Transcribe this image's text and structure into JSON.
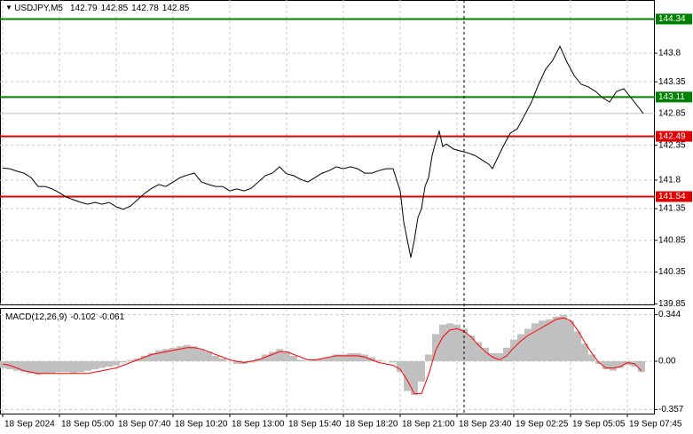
{
  "chart_data": [
    {
      "type": "line",
      "title": "USDJPY,M5",
      "ohlc": [
        142.79,
        142.85,
        142.78,
        142.85
      ],
      "color": "#000000",
      "x": [
        0,
        4,
        8,
        12,
        16,
        20,
        24,
        28,
        32,
        36,
        40,
        44,
        48,
        52,
        56,
        60,
        64,
        68,
        72,
        76,
        80,
        84,
        88,
        92,
        96,
        100,
        104,
        108,
        112,
        116,
        120,
        124,
        128,
        132,
        136,
        140,
        144,
        148,
        152,
        156,
        160,
        164,
        168,
        172,
        176,
        180,
        184,
        188,
        192,
        196,
        200,
        204,
        208,
        212,
        216,
        220,
        224,
        226,
        228,
        230,
        232,
        234,
        236,
        238,
        240,
        242,
        244,
        246,
        248,
        250,
        254,
        258,
        262,
        266,
        270,
        274,
        276,
        278,
        282,
        286,
        290,
        294,
        298,
        302,
        306,
        310,
        314,
        318,
        322,
        326,
        330,
        334,
        338,
        342,
        346,
        350,
        354,
        358,
        361
      ],
      "values": [
        141.99,
        141.98,
        141.94,
        141.91,
        141.84,
        141.7,
        141.7,
        141.66,
        141.6,
        141.53,
        141.49,
        141.45,
        141.42,
        141.45,
        141.42,
        141.45,
        141.38,
        141.34,
        141.39,
        141.49,
        141.59,
        141.67,
        141.73,
        141.7,
        141.77,
        141.84,
        141.88,
        141.91,
        141.77,
        141.73,
        141.7,
        141.7,
        141.63,
        141.66,
        141.63,
        141.67,
        141.77,
        141.87,
        141.91,
        142.01,
        141.9,
        141.87,
        141.81,
        141.77,
        141.84,
        141.91,
        141.95,
        142.01,
        141.98,
        142.01,
        141.98,
        141.91,
        141.91,
        141.95,
        141.98,
        141.98,
        141.63,
        141.14,
        140.86,
        140.58,
        140.86,
        141.21,
        141.35,
        141.7,
        141.84,
        142.19,
        142.4,
        142.57,
        142.33,
        142.37,
        142.29,
        142.26,
        142.23,
        142.19,
        142.12,
        142.05,
        141.98,
        142.1,
        142.33,
        142.54,
        142.61,
        142.82,
        143.03,
        143.31,
        143.55,
        143.69,
        143.91,
        143.66,
        143.45,
        143.31,
        143.27,
        143.2,
        143.1,
        143.03,
        143.2,
        143.24,
        143.1,
        142.96,
        142.85
      ],
      "xlim": [
        -1.5,
        367.5
      ],
      "ylim": [
        139.84,
        144.64
      ],
      "yticks": [
        139.85,
        140.35,
        140.85,
        141.35,
        141.8,
        142.35,
        143.35,
        143.8
      ],
      "levels": [
        {
          "value": 144.34,
          "color": "#008000"
        },
        {
          "value": 143.11,
          "color": "#008000"
        },
        {
          "value": 142.49,
          "color": "#e00000"
        },
        {
          "value": 141.54,
          "color": "#e00000"
        }
      ],
      "current_price": 142.85,
      "grid": true
    },
    {
      "type": "macd",
      "title": "MACD(12,26,9)",
      "readout": [
        -0.102,
        -0.061
      ],
      "x": [
        0,
        4,
        8,
        12,
        16,
        20,
        24,
        28,
        32,
        36,
        40,
        44,
        48,
        52,
        56,
        60,
        64,
        68,
        72,
        76,
        80,
        84,
        88,
        92,
        96,
        100,
        104,
        108,
        112,
        116,
        120,
        124,
        128,
        132,
        136,
        140,
        144,
        148,
        152,
        156,
        160,
        164,
        168,
        172,
        176,
        180,
        184,
        188,
        192,
        196,
        200,
        204,
        208,
        212,
        216,
        220,
        224,
        228,
        232,
        236,
        240,
        244,
        248,
        252,
        256,
        260,
        264,
        268,
        272,
        276,
        280,
        284,
        288,
        292,
        296,
        300,
        304,
        308,
        312,
        316,
        320,
        324,
        328,
        332,
        336,
        340,
        344,
        348,
        352,
        356,
        360
      ],
      "histogram": {
        "color": "#c0c0c0",
        "values": [
          -0.05,
          -0.06,
          -0.07,
          -0.08,
          -0.09,
          -0.1,
          -0.09,
          -0.09,
          -0.08,
          -0.08,
          -0.09,
          -0.08,
          -0.07,
          -0.06,
          -0.05,
          -0.04,
          -0.03,
          -0.01,
          0.01,
          0.02,
          0.04,
          0.06,
          0.08,
          0.09,
          0.1,
          0.11,
          0.12,
          0.11,
          0.09,
          0.07,
          0.04,
          0.02,
          0.0,
          -0.02,
          -0.02,
          -0.01,
          0.02,
          0.05,
          0.07,
          0.09,
          0.07,
          0.04,
          0.01,
          0.0,
          0.01,
          0.02,
          0.03,
          0.05,
          0.05,
          0.06,
          0.06,
          0.05,
          0.03,
          0.01,
          0.0,
          -0.01,
          -0.08,
          -0.22,
          -0.25,
          -0.15,
          0.05,
          0.2,
          0.27,
          0.28,
          0.27,
          0.24,
          0.19,
          0.14,
          0.1,
          0.06,
          0.06,
          0.1,
          0.16,
          0.2,
          0.24,
          0.28,
          0.3,
          0.31,
          0.33,
          0.34,
          0.3,
          0.22,
          0.13,
          0.05,
          -0.02,
          -0.06,
          -0.07,
          -0.05,
          -0.03,
          -0.04,
          -0.08
        ]
      },
      "signal": {
        "color": "#ff0000",
        "values": [
          -0.02,
          -0.03,
          -0.05,
          -0.07,
          -0.08,
          -0.09,
          -0.09,
          -0.09,
          -0.09,
          -0.09,
          -0.09,
          -0.09,
          -0.09,
          -0.08,
          -0.07,
          -0.06,
          -0.05,
          -0.03,
          -0.01,
          0.01,
          0.03,
          0.05,
          0.06,
          0.07,
          0.08,
          0.09,
          0.1,
          0.1,
          0.09,
          0.07,
          0.05,
          0.03,
          0.01,
          0.0,
          -0.01,
          0.0,
          0.01,
          0.03,
          0.05,
          0.07,
          0.07,
          0.05,
          0.03,
          0.01,
          0.01,
          0.02,
          0.03,
          0.04,
          0.04,
          0.04,
          0.04,
          0.03,
          0.01,
          -0.01,
          -0.02,
          -0.03,
          -0.06,
          -0.14,
          -0.24,
          -0.24,
          -0.1,
          0.08,
          0.18,
          0.23,
          0.24,
          0.22,
          0.18,
          0.12,
          0.07,
          0.03,
          0.01,
          0.04,
          0.1,
          0.15,
          0.19,
          0.22,
          0.25,
          0.28,
          0.31,
          0.32,
          0.3,
          0.23,
          0.14,
          0.06,
          -0.01,
          -0.05,
          -0.05,
          -0.04,
          -0.01,
          -0.02,
          -0.07
        ]
      },
      "xlim": [
        -1.5,
        367.5
      ],
      "ylim": [
        -0.387,
        0.387
      ],
      "yticks": [
        -0.357,
        {
          "value": 0,
          "label": "0.00"
        },
        0.344
      ],
      "xticks": [
        {
          "value": 0,
          "label": "18 Sep 2024"
        },
        {
          "value": 32,
          "label": "18 Sep 05:00"
        },
        {
          "value": 64,
          "label": "18 Sep 07:40"
        },
        {
          "value": 96,
          "label": "18 Sep 10:20"
        },
        {
          "value": 128,
          "label": "18 Sep 13:00"
        },
        {
          "value": 160,
          "label": "18 Sep 15:40"
        },
        {
          "value": 192,
          "label": "18 Sep 18:20"
        },
        {
          "value": 224,
          "label": "18 Sep 21:00"
        },
        {
          "value": 256,
          "label": "18 Sep 23:40"
        },
        {
          "value": 288,
          "label": "19 Sep 02:25"
        },
        {
          "value": 320,
          "label": "19 Sep 05:05"
        },
        {
          "value": 352,
          "label": "19 Sep 07:45"
        }
      ],
      "grid": true
    }
  ]
}
